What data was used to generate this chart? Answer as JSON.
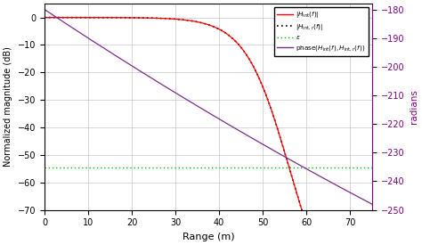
{
  "title": "",
  "xlabel": "Range (m)",
  "ylabel_left": "Normalized magnitude (dB)",
  "ylabel_right": "radians",
  "xlim": [
    0,
    75
  ],
  "ylim_left": [
    -70,
    5
  ],
  "ylim_right": [
    -250,
    -178
  ],
  "yticks_left": [
    0,
    -10,
    -20,
    -30,
    -40,
    -50,
    -60,
    -70
  ],
  "yticks_right": [
    -180,
    -190,
    -200,
    -210,
    -220,
    -230,
    -240,
    -250
  ],
  "xticks": [
    0,
    10,
    20,
    30,
    40,
    50,
    60,
    70
  ],
  "epsilon_level": -54.5,
  "grid_color": "#c0c0c0",
  "colors": {
    "Hint": "#ff0000",
    "Hint_r": "#000000",
    "epsilon": "#00bb00",
    "phase": "#7b2d8b"
  },
  "background_color": "#ffffff"
}
